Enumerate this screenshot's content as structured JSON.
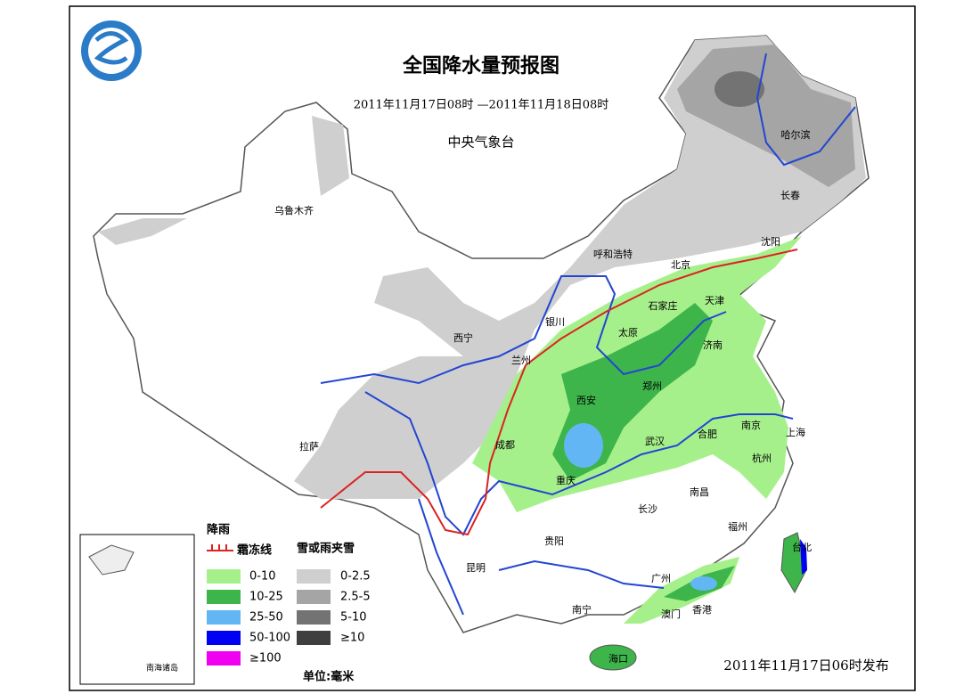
{
  "header": {
    "title": "全国降水量预报图",
    "period": "2011年11月17日08时 —2011年11月18日08时",
    "agency": "中央气象台"
  },
  "cities": [
    "乌鲁木齐",
    "哈尔滨",
    "长春",
    "沈阳",
    "呼和浩特",
    "北京",
    "天津",
    "石家庄",
    "太原",
    "银川",
    "西宁",
    "兰州",
    "济南",
    "郑州",
    "西安",
    "南京",
    "合肥",
    "上海",
    "武汉",
    "成都",
    "拉萨",
    "杭州",
    "重庆",
    "南昌",
    "长沙",
    "福州",
    "贵阳",
    "台北",
    "昆明",
    "广州",
    "南宁",
    "澳门",
    "香港",
    "海口"
  ],
  "legend": {
    "rain_title": "降雨",
    "frost_line": "霜冻线",
    "snow_title": "雪或雨夹雪",
    "rain": [
      {
        "label": "0-10",
        "color": "#a6f08c"
      },
      {
        "label": "10-25",
        "color": "#3db54a"
      },
      {
        "label": "25-50",
        "color": "#63b6f4"
      },
      {
        "label": "50-100",
        "color": "#0000f2"
      },
      {
        "label": "≥100",
        "color": "#f000f0"
      }
    ],
    "snow": [
      {
        "label": "0-2.5",
        "color": "#cfcfcf"
      },
      {
        "label": "2.5-5",
        "color": "#a5a5a5"
      },
      {
        "label": "5-10",
        "color": "#737373"
      },
      {
        "label": "≥10",
        "color": "#3f3f3f"
      }
    ],
    "unit": "单位:毫米"
  },
  "inset_label": "南海诸岛",
  "footer": "2011年11月17日06时发布"
}
